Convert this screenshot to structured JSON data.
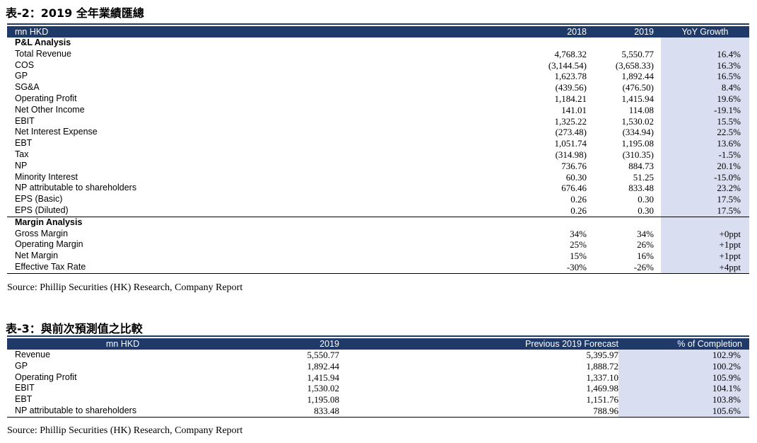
{
  "table2": {
    "title": "表-2：2019 全年業績匯總",
    "headers": [
      "mn HKD",
      "2018",
      "2019",
      "YoY Growth"
    ],
    "sections": [
      {
        "heading": "P&L Analysis",
        "rows": [
          [
            "Total Revenue",
            "4,768.32",
            "5,550.77",
            "16.4%"
          ],
          [
            "COS",
            "(3,144.54)",
            "(3,658.33)",
            "16.3%"
          ],
          [
            "GP",
            "1,623.78",
            "1,892.44",
            "16.5%"
          ],
          [
            "SG&A",
            "(439.56)",
            "(476.50)",
            "8.4%"
          ],
          [
            "Operating Profit",
            "1,184.21",
            "1,415.94",
            "19.6%"
          ],
          [
            "Net Other Income",
            "141.01",
            "114.08",
            "-19.1%"
          ],
          [
            "EBIT",
            "1,325.22",
            "1,530.02",
            "15.5%"
          ],
          [
            "Net Interest Expense",
            "(273.48)",
            "(334.94)",
            "22.5%"
          ],
          [
            "EBT",
            "1,051.74",
            "1,195.08",
            "13.6%"
          ],
          [
            "Tax",
            "(314.98)",
            "(310.35)",
            "-1.5%"
          ],
          [
            "NP",
            "736.76",
            "884.73",
            "20.1%"
          ],
          [
            "Minority Interest",
            "60.30",
            "51.25",
            "-15.0%"
          ],
          [
            "NP attributable to shareholders",
            "676.46",
            "833.48",
            "23.2%"
          ],
          [
            "EPS (Basic)",
            "0.26",
            "0.30",
            "17.5%"
          ],
          [
            "EPS (Diluted)",
            "0.26",
            "0.30",
            "17.5%"
          ]
        ]
      },
      {
        "heading": "Margin Analysis",
        "rows": [
          [
            "Gross Margin",
            "34%",
            "34%",
            "+0ppt"
          ],
          [
            "Operating Margin",
            "25%",
            "26%",
            "+1ppt"
          ],
          [
            "Net Margin",
            "15%",
            "16%",
            "+1ppt"
          ],
          [
            "Effective Tax Rate",
            "-30%",
            "-26%",
            "+4ppt"
          ]
        ]
      }
    ],
    "source": "Source: Phillip Securities (HK) Research, Company Report"
  },
  "table3": {
    "title": "表-3：與前次預測值之比較",
    "headers": [
      "mn HKD",
      "2019",
      "Previous 2019 Forecast",
      "% of Completion"
    ],
    "rows": [
      [
        "Revenue",
        "5,550.77",
        "5,395.97",
        "102.9%"
      ],
      [
        "GP",
        "1,892.44",
        "1,888.72",
        "100.2%"
      ],
      [
        "Operating Profit",
        "1,415.94",
        "1,337.10",
        "105.9%"
      ],
      [
        "EBIT",
        "1,530.02",
        "1,469.98",
        "104.1%"
      ],
      [
        "EBT",
        "1,195.08",
        "1,151.76",
        "103.8%"
      ],
      [
        "NP attributable to shareholders",
        "833.48",
        "788.96",
        "105.6%"
      ]
    ],
    "source": "Source: Phillip Securities (HK) Research, Company Report"
  }
}
